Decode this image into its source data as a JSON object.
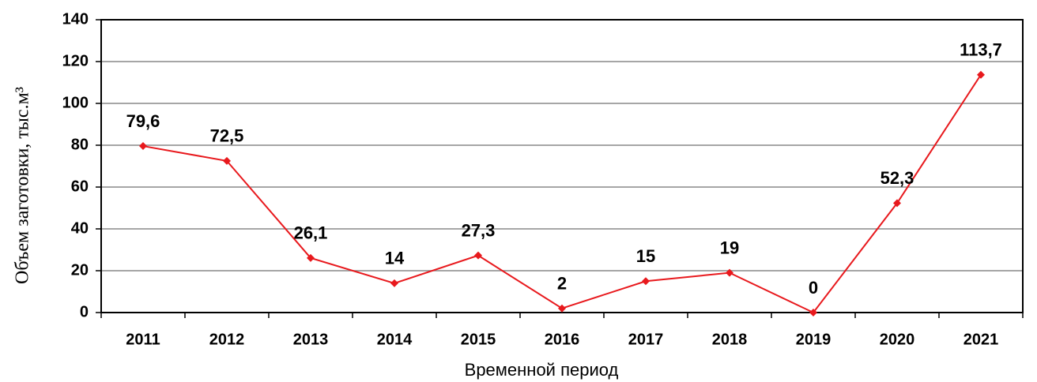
{
  "chart_data": {
    "type": "line",
    "y_label": "Объем заготовки, тыс.м³",
    "x_label": "Временной период",
    "categories": [
      "2011",
      "2012",
      "2013",
      "2014",
      "2015",
      "2016",
      "2017",
      "2018",
      "2019",
      "2020",
      "2021"
    ],
    "series": [
      {
        "color": "#e8191d",
        "values": [
          79.6,
          72.5,
          26.1,
          14,
          27.3,
          2,
          15,
          19,
          0,
          52.3,
          113.7
        ],
        "value_labels": [
          "79,6",
          "72,5",
          "26,1",
          "14",
          "27,3",
          "2",
          "15",
          "19",
          "0",
          "52,3",
          "113,7"
        ]
      }
    ],
    "ylim": [
      0,
      140
    ],
    "yticks": [
      0,
      20,
      40,
      60,
      80,
      100,
      120,
      140
    ],
    "grid": true
  }
}
